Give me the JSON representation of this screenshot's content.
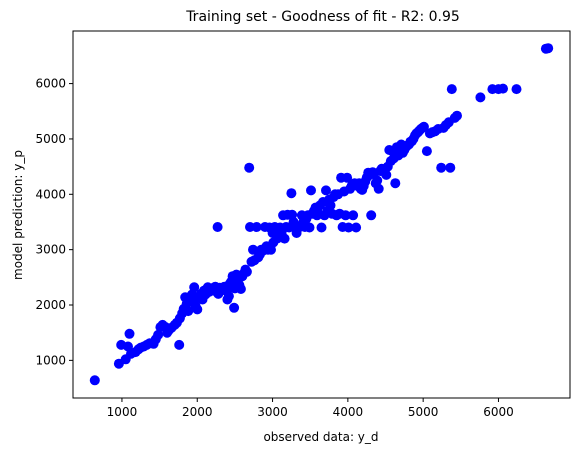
{
  "chart_data": {
    "type": "scatter",
    "title": "Training set - Goodness of fit -  R2: 0.95",
    "xlabel": "observed data: y_d",
    "ylabel": "model prediction: y_p",
    "xlim": [
      350,
      6950
    ],
    "ylim": [
      320,
      6950
    ],
    "xticks": [
      1000,
      2000,
      3000,
      4000,
      5000,
      6000
    ],
    "yticks": [
      1000,
      2000,
      3000,
      4000,
      5000,
      6000
    ],
    "grid": false,
    "marker_color": "#0000ff",
    "series": [
      {
        "points": [
          [
            640,
            640
          ],
          [
            960,
            940
          ],
          [
            990,
            1280
          ],
          [
            1050,
            1020
          ],
          [
            1080,
            1250
          ],
          [
            1100,
            1480
          ],
          [
            1120,
            1120
          ],
          [
            1180,
            1150
          ],
          [
            1220,
            1200
          ],
          [
            1250,
            1230
          ],
          [
            1290,
            1250
          ],
          [
            1330,
            1280
          ],
          [
            1370,
            1310
          ],
          [
            1420,
            1300
          ],
          [
            1450,
            1380
          ],
          [
            1480,
            1460
          ],
          [
            1510,
            1600
          ],
          [
            1540,
            1640
          ],
          [
            1580,
            1600
          ],
          [
            1600,
            1500
          ],
          [
            1620,
            1540
          ],
          [
            1660,
            1590
          ],
          [
            1700,
            1640
          ],
          [
            1730,
            1680
          ],
          [
            1760,
            1280
          ],
          [
            1770,
            1760
          ],
          [
            1800,
            1850
          ],
          [
            1820,
            1930
          ],
          [
            1840,
            2140
          ],
          [
            1860,
            2020
          ],
          [
            1880,
            1890
          ],
          [
            1910,
            2080
          ],
          [
            1930,
            2190
          ],
          [
            1950,
            2060
          ],
          [
            1960,
            2320
          ],
          [
            1980,
            1980
          ],
          [
            2000,
            1920
          ],
          [
            2020,
            2150
          ],
          [
            2050,
            2200
          ],
          [
            2070,
            2100
          ],
          [
            2090,
            2260
          ],
          [
            2110,
            2190
          ],
          [
            2140,
            2320
          ],
          [
            2160,
            2240
          ],
          [
            2190,
            2300
          ],
          [
            2210,
            2260
          ],
          [
            2240,
            2330
          ],
          [
            2270,
            3410
          ],
          [
            2280,
            2200
          ],
          [
            2300,
            2310
          ],
          [
            2330,
            2280
          ],
          [
            2360,
            2330
          ],
          [
            2390,
            2250
          ],
          [
            2400,
            2100
          ],
          [
            2420,
            2160
          ],
          [
            2430,
            2380
          ],
          [
            2450,
            2420
          ],
          [
            2470,
            2520
          ],
          [
            2490,
            1950
          ],
          [
            2500,
            2300
          ],
          [
            2520,
            2550
          ],
          [
            2540,
            2440
          ],
          [
            2560,
            2360
          ],
          [
            2580,
            2290
          ],
          [
            2600,
            2520
          ],
          [
            2610,
            2560
          ],
          [
            2640,
            2640
          ],
          [
            2660,
            2600
          ],
          [
            2690,
            4480
          ],
          [
            2700,
            3410
          ],
          [
            2720,
            2780
          ],
          [
            2740,
            3000
          ],
          [
            2760,
            2810
          ],
          [
            2790,
            3410
          ],
          [
            2810,
            2860
          ],
          [
            2830,
            2910
          ],
          [
            2850,
            3000
          ],
          [
            2870,
            2980
          ],
          [
            2900,
            3410
          ],
          [
            2920,
            3060
          ],
          [
            2940,
            3000
          ],
          [
            2960,
            3400
          ],
          [
            2980,
            3000
          ],
          [
            3000,
            3300
          ],
          [
            3010,
            3130
          ],
          [
            3030,
            3410
          ],
          [
            3060,
            3200
          ],
          [
            3080,
            3260
          ],
          [
            3100,
            3400
          ],
          [
            3120,
            3300
          ],
          [
            3140,
            3620
          ],
          [
            3160,
            3200
          ],
          [
            3180,
            3410
          ],
          [
            3200,
            3630
          ],
          [
            3220,
            3400
          ],
          [
            3250,
            4020
          ],
          [
            3260,
            3630
          ],
          [
            3280,
            3500
          ],
          [
            3300,
            3410
          ],
          [
            3320,
            3300
          ],
          [
            3340,
            3410
          ],
          [
            3360,
            3410
          ],
          [
            3390,
            3620
          ],
          [
            3410,
            3500
          ],
          [
            3430,
            3410
          ],
          [
            3450,
            3560
          ],
          [
            3470,
            3620
          ],
          [
            3490,
            3400
          ],
          [
            3510,
            4070
          ],
          [
            3530,
            3650
          ],
          [
            3550,
            3700
          ],
          [
            3570,
            3760
          ],
          [
            3590,
            3620
          ],
          [
            3610,
            3650
          ],
          [
            3630,
            3800
          ],
          [
            3650,
            3400
          ],
          [
            3670,
            3860
          ],
          [
            3690,
            3620
          ],
          [
            3710,
            4070
          ],
          [
            3730,
            3700
          ],
          [
            3750,
            3900
          ],
          [
            3770,
            3800
          ],
          [
            3790,
            3650
          ],
          [
            3810,
            3950
          ],
          [
            3830,
            4000
          ],
          [
            3850,
            3620
          ],
          [
            3870,
            4000
          ],
          [
            3890,
            3650
          ],
          [
            3910,
            4300
          ],
          [
            3930,
            3410
          ],
          [
            3950,
            4050
          ],
          [
            3970,
            3620
          ],
          [
            3990,
            4300
          ],
          [
            4010,
            3400
          ],
          [
            4030,
            4100
          ],
          [
            4050,
            4150
          ],
          [
            4070,
            3620
          ],
          [
            4090,
            4200
          ],
          [
            4110,
            3400
          ],
          [
            4130,
            4150
          ],
          [
            4150,
            4200
          ],
          [
            4170,
            4100
          ],
          [
            4190,
            4080
          ],
          [
            4210,
            4150
          ],
          [
            4230,
            4230
          ],
          [
            4250,
            4300
          ],
          [
            4270,
            4390
          ],
          [
            4290,
            4350
          ],
          [
            4310,
            3620
          ],
          [
            4330,
            4400
          ],
          [
            4350,
            4380
          ],
          [
            4370,
            4200
          ],
          [
            4390,
            4250
          ],
          [
            4410,
            4100
          ],
          [
            4430,
            4420
          ],
          [
            4450,
            4460
          ],
          [
            4470,
            4450
          ],
          [
            4490,
            4400
          ],
          [
            4510,
            4350
          ],
          [
            4530,
            4500
          ],
          [
            4550,
            4800
          ],
          [
            4570,
            4600
          ],
          [
            4590,
            4780
          ],
          [
            4610,
            4650
          ],
          [
            4630,
            4200
          ],
          [
            4650,
            4850
          ],
          [
            4670,
            4700
          ],
          [
            4690,
            4800
          ],
          [
            4710,
            4900
          ],
          [
            4730,
            4750
          ],
          [
            4750,
            4800
          ],
          [
            4770,
            4850
          ],
          [
            4790,
            4880
          ],
          [
            4810,
            4900
          ],
          [
            4830,
            4950
          ],
          [
            4850,
            4960
          ],
          [
            4870,
            5000
          ],
          [
            4890,
            5060
          ],
          [
            4910,
            5100
          ],
          [
            4930,
            5120
          ],
          [
            4950,
            5150
          ],
          [
            4970,
            5180
          ],
          [
            4990,
            5200
          ],
          [
            5010,
            5220
          ],
          [
            5050,
            4780
          ],
          [
            5090,
            5100
          ],
          [
            5120,
            5120
          ],
          [
            5160,
            5140
          ],
          [
            5200,
            5180
          ],
          [
            5240,
            4480
          ],
          [
            5270,
            5200
          ],
          [
            5300,
            5250
          ],
          [
            5340,
            5300
          ],
          [
            5360,
            4480
          ],
          [
            5380,
            5900
          ],
          [
            5420,
            5380
          ],
          [
            5450,
            5420
          ],
          [
            5760,
            5750
          ],
          [
            5920,
            5900
          ],
          [
            6000,
            5900
          ],
          [
            6060,
            5910
          ],
          [
            6240,
            5900
          ],
          [
            6630,
            6630
          ],
          [
            6660,
            6640
          ]
        ]
      }
    ]
  }
}
